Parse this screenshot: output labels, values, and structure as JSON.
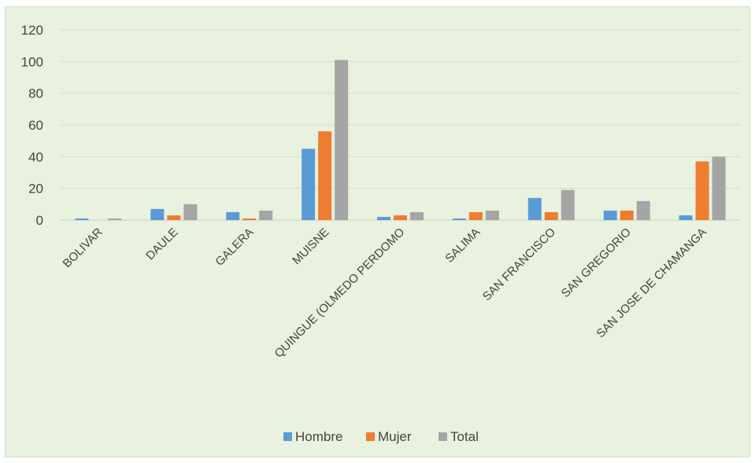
{
  "chart_data": {
    "type": "bar",
    "title": "",
    "xlabel": "",
    "ylabel": "",
    "ylim": [
      0,
      120
    ],
    "yticks": [
      0,
      20,
      40,
      60,
      80,
      100,
      120
    ],
    "grid": true,
    "legend_position": "bottom",
    "categories": [
      "BOLIVAR",
      "DAULE",
      "GALERA",
      "MUISNE",
      "QUINGUE (OLMEDO PERDOMO",
      "SALIMA",
      "SAN FRANCISCO",
      "SAN GREGORIO",
      "SAN JOSE DE CHAMANGA"
    ],
    "series": [
      {
        "name": "Hombre",
        "color": "#5b9bd5",
        "values": [
          1,
          7,
          5,
          45,
          2,
          1,
          14,
          6,
          3
        ]
      },
      {
        "name": "Mujer",
        "color": "#ed7d31",
        "values": [
          0,
          3,
          1,
          56,
          3,
          5,
          5,
          6,
          37
        ]
      },
      {
        "name": "Total",
        "color": "#a5a5a5",
        "values": [
          1,
          10,
          6,
          101,
          5,
          6,
          19,
          12,
          40
        ]
      }
    ]
  }
}
